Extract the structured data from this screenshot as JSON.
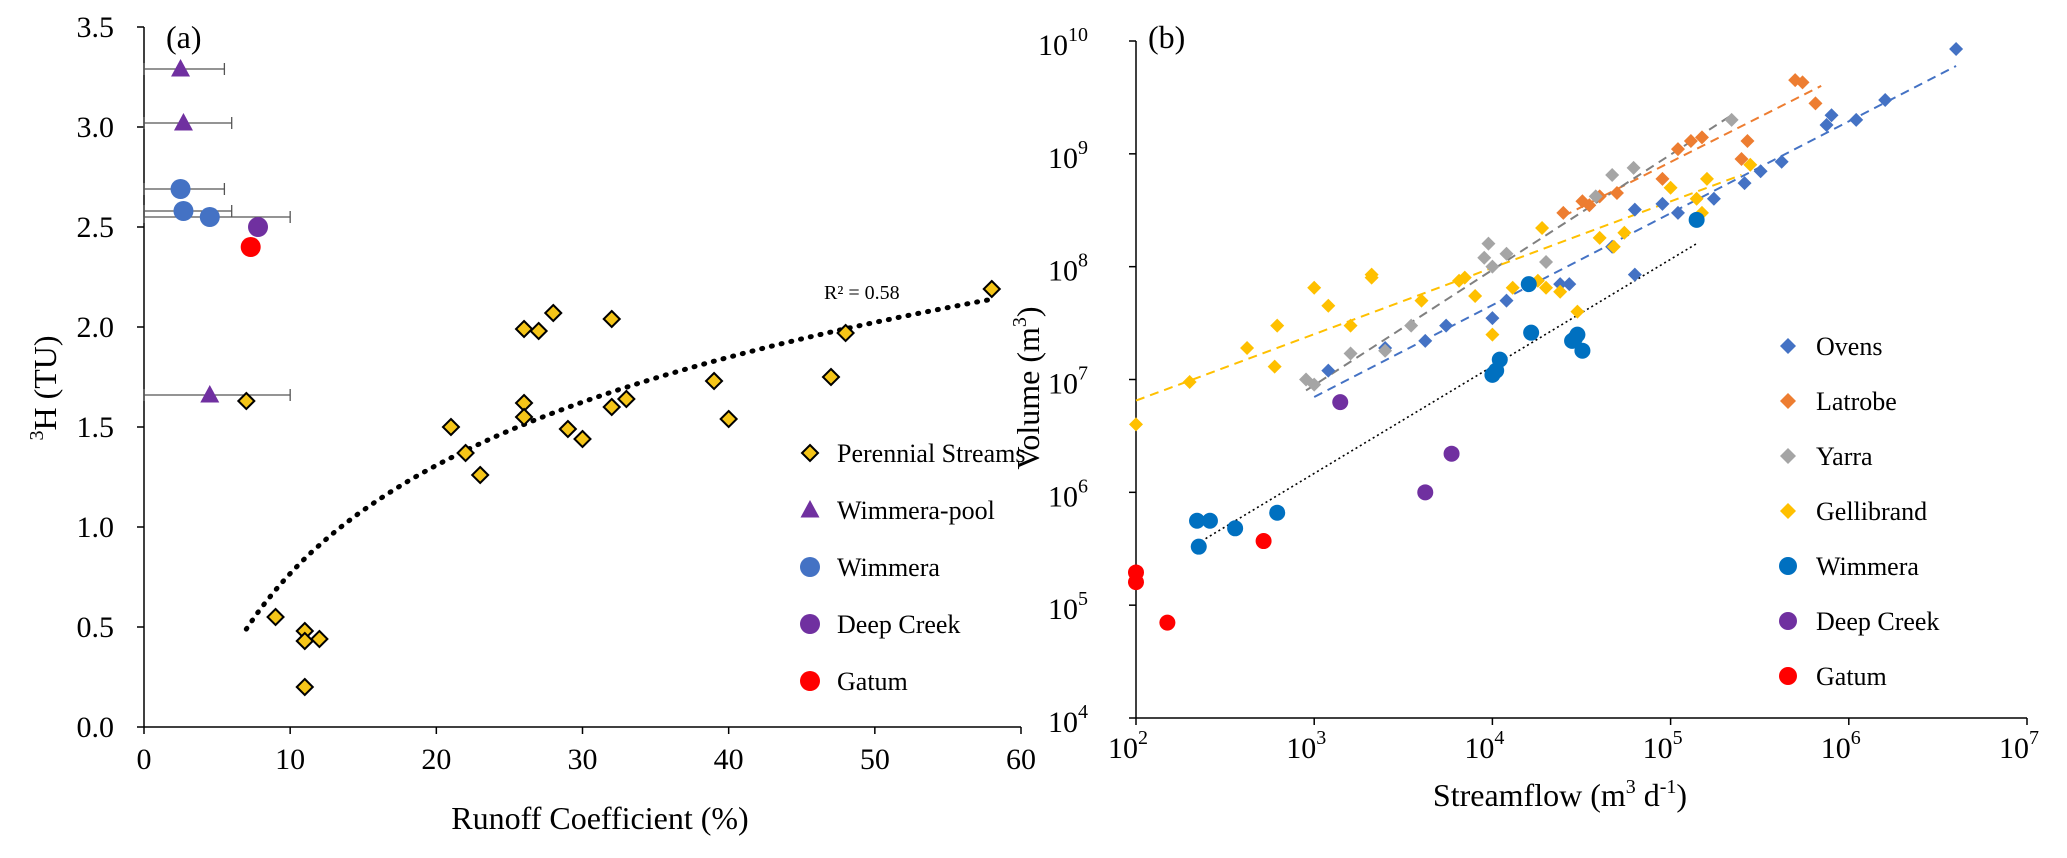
{
  "chart_data": [
    {
      "panel": "(a)",
      "type": "scatter",
      "xlabel": "Runoff  Coefficient (%)",
      "ylabel_sup": "3",
      "ylabel": "H (TU)",
      "xlim": [
        0,
        60
      ],
      "ylim": [
        0,
        3.5
      ],
      "xticks": [
        "0",
        "10",
        "20",
        "30",
        "40",
        "50",
        "60"
      ],
      "yticks": [
        "0.0",
        "0.5",
        "1.0",
        "1.5",
        "2.0",
        "2.5",
        "3.0",
        "3.5"
      ],
      "annotation": "R² = 0.58",
      "trendline": {
        "type": "logarithmic",
        "x_range": [
          7,
          58
        ],
        "r2": 0.58
      },
      "legend_position": "right",
      "series": [
        {
          "name": "Perennial Streams",
          "marker": "diamond",
          "color": "#f5c518",
          "edge": "#000000",
          "x": [
            7,
            9,
            11,
            11,
            12,
            11,
            21,
            22,
            23,
            26,
            26,
            26,
            27,
            28,
            29,
            30,
            32,
            32,
            33,
            39,
            40,
            47,
            48,
            58
          ],
          "y": [
            1.63,
            0.55,
            0.48,
            0.43,
            0.44,
            0.2,
            1.5,
            1.37,
            1.26,
            1.99,
            1.62,
            1.55,
            1.98,
            2.07,
            1.49,
            1.44,
            2.04,
            1.6,
            1.64,
            1.73,
            1.54,
            1.75,
            1.97,
            2.19
          ]
        },
        {
          "name": "Wimmera-pool",
          "marker": "triangle",
          "color": "#7030a0",
          "x": [
            2.5,
            2.7,
            4.5
          ],
          "y": [
            3.29,
            3.02,
            1.66
          ],
          "xerr": [
            3.0,
            3.3,
            5.5
          ]
        },
        {
          "name": "Wimmera",
          "marker": "circle",
          "color": "#4472c4",
          "x": [
            2.5,
            2.7,
            4.5
          ],
          "y": [
            2.69,
            2.58,
            2.55
          ],
          "xerr": [
            3.0,
            3.3,
            5.5
          ]
        },
        {
          "name": "Deep Creek",
          "marker": "circle",
          "color": "#7030a0",
          "x": [
            7.8
          ],
          "y": [
            2.5
          ]
        },
        {
          "name": "Gatum",
          "marker": "circle",
          "color": "#ff0000",
          "x": [
            7.3
          ],
          "y": [
            2.4
          ]
        }
      ]
    },
    {
      "panel": "(b)",
      "type": "scatter",
      "xscale": "log",
      "yscale": "log",
      "xlabel": "Streamflow (m³ d⁻¹)",
      "ylabel": "Volume (m³)",
      "xlim": [
        100,
        10000000
      ],
      "ylim": [
        10000,
        10000000000
      ],
      "xticks": [
        {
          "base": "10",
          "exp": "2"
        },
        {
          "base": "10",
          "exp": "3"
        },
        {
          "base": "10",
          "exp": "4"
        },
        {
          "base": "10",
          "exp": "5"
        },
        {
          "base": "10",
          "exp": "6"
        },
        {
          "base": "10",
          "exp": "7"
        }
      ],
      "yticks": [
        {
          "base": "10",
          "exp": "4"
        },
        {
          "base": "10",
          "exp": "5"
        },
        {
          "base": "10",
          "exp": "6"
        },
        {
          "base": "10",
          "exp": "7"
        },
        {
          "base": "10",
          "exp": "8"
        },
        {
          "base": "10",
          "exp": "9"
        },
        {
          "base": "10",
          "exp": "10"
        }
      ],
      "legend_position": "right",
      "series": [
        {
          "name": "Ovens",
          "marker": "diamond",
          "color": "#4472c4",
          "x": [
            1200,
            2500,
            4200,
            5500,
            10000,
            24000,
            47000,
            63000,
            90000,
            110000,
            175000,
            260000,
            320000,
            420000,
            750000,
            800000,
            1100000,
            1600000,
            4000000,
            63000,
            12000,
            27000
          ],
          "y": [
            12000000,
            19000000,
            22000000,
            30000000,
            35000000,
            70000000,
            150000000,
            320000000,
            360000000,
            300000000,
            400000000,
            550000000,
            700000000,
            850000000,
            1800000000,
            2200000000,
            2000000000,
            3000000000,
            8500000000,
            85000000,
            50000000,
            70000000
          ],
          "trend": {
            "x": [
              1000,
              4000000
            ],
            "y": [
              7000000,
              6000000000
            ],
            "color": "#4472c4"
          }
        },
        {
          "name": "Latrobe",
          "marker": "diamond",
          "color": "#ed7d31",
          "x": [
            25000,
            32000,
            40000,
            50000,
            90000,
            110000,
            130000,
            150000,
            250000,
            270000,
            500000,
            550000,
            650000,
            35000
          ],
          "y": [
            300000000,
            380000000,
            420000000,
            450000000,
            600000000,
            1100000000,
            1300000000,
            1400000000,
            900000000,
            1300000000,
            4500000000,
            4300000000,
            2800000000,
            350000000
          ],
          "trend": {
            "x": [
              25000,
              700000
            ],
            "y": [
              280000000,
              4000000000
            ],
            "color": "#ed7d31"
          }
        },
        {
          "name": "Yarra",
          "marker": "diamond",
          "color": "#a5a5a5",
          "x": [
            900,
            1000,
            1600,
            2500,
            3500,
            9000,
            9500,
            12000,
            20000,
            38000,
            47000,
            62000,
            220000,
            10000
          ],
          "y": [
            10000000,
            9000000,
            17000000,
            18000000,
            30000000,
            120000000,
            160000000,
            130000000,
            110000000,
            420000000,
            650000000,
            750000000,
            2000000000,
            100000000
          ],
          "trend": {
            "x": [
              900,
              220000
            ],
            "y": [
              8000000,
              2200000000
            ],
            "color": "#808080"
          }
        },
        {
          "name": "Gellibrand",
          "marker": "diamond",
          "color": "#ffc000",
          "x": [
            100,
            200,
            420,
            600,
            620,
            1000,
            1200,
            1600,
            2100,
            2100,
            4000,
            6500,
            7000,
            8000,
            10000,
            13000,
            18000,
            19000,
            20000,
            24000,
            30000,
            40000,
            48000,
            55000,
            100000,
            140000,
            160000,
            280000,
            150000
          ],
          "y": [
            4000000,
            9500000,
            19000000,
            13000000,
            30000000,
            65000000,
            45000000,
            30000000,
            80000000,
            85000000,
            50000000,
            75000000,
            80000000,
            55000000,
            25000000,
            65000000,
            75000000,
            220000000,
            65000000,
            60000000,
            40000000,
            180000000,
            150000000,
            200000000,
            500000000,
            400000000,
            600000000,
            800000000,
            300000000
          ],
          "trend": {
            "x": [
              100,
              250000
            ],
            "y": [
              6500000,
              650000000
            ],
            "color": "#ffc000"
          }
        },
        {
          "name": "Wimmera",
          "marker": "circle",
          "color": "#0070c0",
          "x": [
            220,
            225,
            260,
            360,
            620,
            10000,
            10500,
            11000,
            16000,
            16500,
            28000,
            29000,
            30000,
            32000,
            140000
          ],
          "y": [
            560000,
            330000,
            560000,
            480000,
            660000,
            11000000,
            12000000,
            15000000,
            70000000,
            26000000,
            22000000,
            23000000,
            25000000,
            18000000,
            260000000
          ],
          "trend": {
            "x": [
              220,
              140000
            ],
            "y": [
              350000,
              160000000
            ],
            "color": "#000000",
            "dotted": true
          }
        },
        {
          "name": "Deep Creek",
          "marker": "circle",
          "color": "#7030a0",
          "x": [
            1400,
            4200,
            5900
          ],
          "y": [
            6300000,
            1000000,
            2200000
          ]
        },
        {
          "name": "Gatum",
          "marker": "circle",
          "color": "#ff0000",
          "x": [
            100,
            100,
            150,
            520
          ],
          "y": [
            195000,
            160000,
            70000,
            370000
          ]
        }
      ]
    }
  ]
}
